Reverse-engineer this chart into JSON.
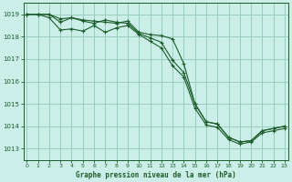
{
  "title": "Graphe pression niveau de la mer (hPa)",
  "bg_color": "#cceee8",
  "grid_color": "#99ccbb",
  "line_color": "#1a5c2a",
  "xlim": [
    -0.3,
    23.3
  ],
  "ylim": [
    1012.5,
    1019.5
  ],
  "yticks": [
    1013,
    1014,
    1015,
    1016,
    1017,
    1018,
    1019
  ],
  "xticks": [
    0,
    1,
    2,
    3,
    4,
    5,
    6,
    7,
    8,
    9,
    10,
    11,
    12,
    13,
    14,
    15,
    16,
    17,
    18,
    19,
    20,
    21,
    22,
    23
  ],
  "series1_x": [
    0,
    1,
    2,
    3,
    4,
    5,
    6,
    7,
    8,
    9,
    10,
    11,
    12,
    13,
    14,
    15,
    16,
    17,
    18,
    19,
    20,
    21,
    22,
    23
  ],
  "series1_y": [
    1019.0,
    1019.0,
    1019.0,
    1018.8,
    1018.85,
    1018.75,
    1018.7,
    1018.65,
    1018.6,
    1018.7,
    1018.2,
    1018.1,
    1018.05,
    1017.9,
    1016.8,
    1015.0,
    1014.2,
    1014.1,
    1013.5,
    1013.3,
    1013.35,
    1013.8,
    1013.9,
    1014.0
  ],
  "series2_x": [
    0,
    1,
    2,
    3,
    4,
    5,
    6,
    7,
    8,
    9,
    10,
    11,
    12,
    13,
    14,
    15,
    16,
    17,
    18,
    19,
    20,
    21,
    22,
    23
  ],
  "series2_y": [
    1019.0,
    1019.0,
    1019.0,
    1018.65,
    1018.85,
    1018.7,
    1018.6,
    1018.75,
    1018.65,
    1018.6,
    1018.15,
    1017.95,
    1017.75,
    1016.95,
    1016.4,
    1015.0,
    1014.2,
    1014.1,
    1013.5,
    1013.3,
    1013.35,
    1013.8,
    1013.9,
    1014.0
  ],
  "series3_x": [
    0,
    1,
    2,
    3,
    4,
    5,
    6,
    7,
    8,
    9,
    10,
    11,
    12,
    13,
    14,
    15,
    16,
    17,
    18,
    19,
    20,
    21,
    22,
    23
  ],
  "series3_y": [
    1019.0,
    1019.0,
    1018.85,
    1018.3,
    1018.35,
    1018.25,
    1018.5,
    1018.2,
    1018.4,
    1018.5,
    1018.1,
    1017.8,
    1017.5,
    1016.7,
    1016.2,
    1014.8,
    1014.05,
    1013.95,
    1013.4,
    1013.2,
    1013.3,
    1013.7,
    1013.8,
    1013.9
  ]
}
